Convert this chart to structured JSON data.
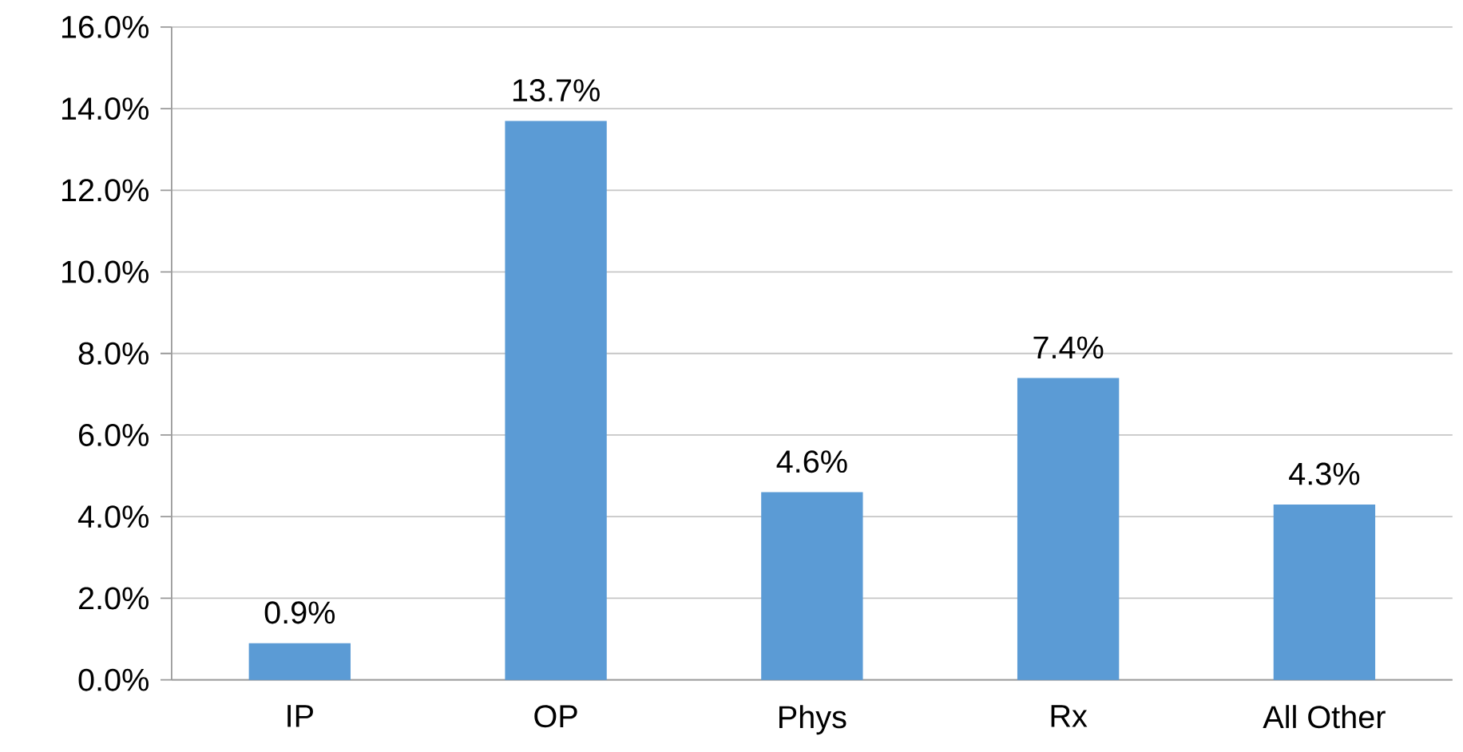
{
  "chart_data": {
    "type": "bar",
    "categories": [
      "IP",
      "OP",
      "Phys",
      "Rx",
      "All Other"
    ],
    "values": [
      0.9,
      13.7,
      4.6,
      7.4,
      4.3
    ],
    "value_labels": [
      "0.9%",
      "13.7%",
      "4.6%",
      "7.4%",
      "4.3%"
    ],
    "color": "#5b9bd5",
    "ylim": [
      0,
      16
    ],
    "yticks": [
      {
        "value": 0,
        "label": "0.0%"
      },
      {
        "value": 2,
        "label": "2.0%"
      },
      {
        "value": 4,
        "label": "4.0%"
      },
      {
        "value": 6,
        "label": "6.0%"
      },
      {
        "value": 8,
        "label": "8.0%"
      },
      {
        "value": 10,
        "label": "10.0%"
      },
      {
        "value": 12,
        "label": "12.0%"
      },
      {
        "value": 14,
        "label": "14.0%"
      },
      {
        "value": 16,
        "label": "16.0%"
      }
    ],
    "grid": "y"
  }
}
